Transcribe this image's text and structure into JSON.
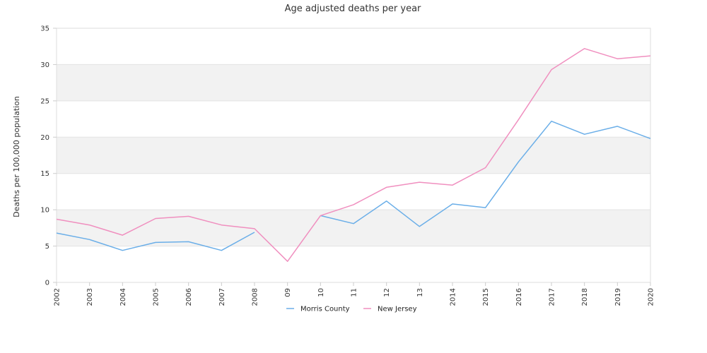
{
  "chart_data": {
    "type": "line",
    "title": "Age adjusted deaths per year",
    "xlabel": "",
    "ylabel": "Deaths per 100,000 population",
    "categories": [
      "2002",
      "2003",
      "2004",
      "2005",
      "2006",
      "2007",
      "2008",
      "09",
      "10",
      "11",
      "12",
      "13",
      "2014",
      "2015",
      "2016",
      "2017",
      "2018",
      "2019",
      "2020"
    ],
    "ylim": [
      0,
      35
    ],
    "yticks": [
      0,
      5,
      10,
      15,
      20,
      25,
      30,
      35
    ],
    "grid": "horizontal alternating bands",
    "legend_position": "bottom-center",
    "series": [
      {
        "name": "Morris County",
        "color": "#6aaee8",
        "values": [
          6.8,
          5.9,
          4.4,
          5.5,
          5.6,
          4.4,
          6.9,
          null,
          9.2,
          8.1,
          11.2,
          7.7,
          10.8,
          10.3,
          16.6,
          22.2,
          20.4,
          21.5,
          19.8
        ]
      },
      {
        "name": "New Jersey",
        "color": "#f08fbf",
        "values": [
          8.7,
          7.9,
          6.5,
          8.8,
          9.1,
          7.9,
          7.4,
          2.9,
          9.2,
          10.7,
          13.1,
          13.8,
          13.4,
          15.8,
          22.4,
          29.3,
          32.2,
          30.8,
          31.2
        ]
      }
    ],
    "band_color": "#f2f2f2",
    "grid_color": "#e3e3e3",
    "axis_color": "#cccccc"
  }
}
